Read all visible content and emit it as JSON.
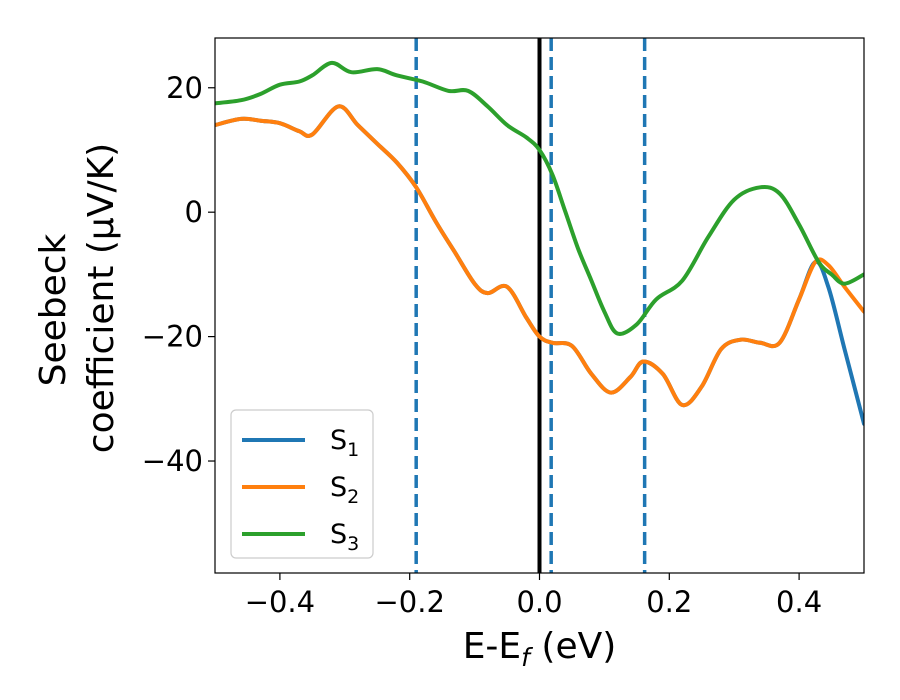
{
  "chart_data": {
    "type": "line",
    "xlabel": "E-E",
    "xlabel_sub": "f",
    "xlabel_unit": " (eV)",
    "ylabel_line1": "Seebeck",
    "ylabel_line2": "coefficient  (μV/K)",
    "xlim": [
      -0.5,
      0.5
    ],
    "ylim": [
      -58,
      28
    ],
    "xticks": [
      -0.4,
      -0.2,
      0.0,
      0.2,
      0.4
    ],
    "xtick_labels": [
      "−0.4",
      "−0.2",
      "0.0",
      "0.2",
      "0.4"
    ],
    "yticks": [
      20,
      0,
      -20,
      -40
    ],
    "ytick_labels": [
      "20",
      "0",
      "−20",
      "−40"
    ],
    "grid": false,
    "legend_position": "lower-left",
    "vertical_lines": [
      {
        "x": -0.19,
        "style": "dashed",
        "color": "#1f77b4"
      },
      {
        "x": 0.0,
        "style": "solid",
        "color": "#000000"
      },
      {
        "x": 0.018,
        "style": "dashed",
        "color": "#1f77b4"
      },
      {
        "x": 0.162,
        "style": "dashed",
        "color": "#1f77b4"
      }
    ],
    "series": [
      {
        "name": "S",
        "subscript": "1",
        "color": "#1f77b4",
        "x": [
          -0.5,
          -0.46,
          -0.43,
          -0.4,
          -0.37,
          -0.35,
          -0.31,
          -0.28,
          -0.25,
          -0.22,
          -0.19,
          -0.16,
          -0.13,
          -0.1,
          -0.08,
          -0.05,
          -0.02,
          0.0,
          0.02,
          0.05,
          0.08,
          0.11,
          0.14,
          0.16,
          0.19,
          0.22,
          0.25,
          0.28,
          0.31,
          0.34,
          0.37,
          0.4,
          0.425,
          0.445,
          0.47,
          0.5
        ],
        "y": [
          14,
          15,
          14.7,
          14.3,
          13,
          12.5,
          17,
          14,
          11,
          8,
          4,
          -1.5,
          -6.5,
          -11.5,
          -13,
          -12,
          -17,
          -20,
          -21,
          -21.5,
          -26,
          -29,
          -26.5,
          -24,
          -26,
          -31,
          -28,
          -22,
          -20.5,
          -21,
          -21,
          -14,
          -8,
          -12,
          -22,
          -34
        ]
      },
      {
        "name": "S",
        "subscript": "2",
        "color": "#ff7f0e",
        "x": [
          -0.5,
          -0.46,
          -0.43,
          -0.4,
          -0.37,
          -0.35,
          -0.31,
          -0.28,
          -0.25,
          -0.22,
          -0.19,
          -0.16,
          -0.13,
          -0.1,
          -0.08,
          -0.05,
          -0.02,
          0.0,
          0.02,
          0.05,
          0.08,
          0.11,
          0.14,
          0.16,
          0.19,
          0.22,
          0.25,
          0.28,
          0.31,
          0.34,
          0.37,
          0.4,
          0.425,
          0.445,
          0.47,
          0.5
        ],
        "y": [
          14,
          15,
          14.7,
          14.3,
          13,
          12.5,
          17,
          14,
          11,
          8,
          4,
          -1.5,
          -6.5,
          -11.5,
          -13,
          -12,
          -17,
          -20,
          -21,
          -21.5,
          -26,
          -29,
          -26.5,
          -24,
          -26,
          -31,
          -28,
          -22,
          -20.5,
          -21,
          -21,
          -14,
          -8,
          -8.5,
          -12,
          -16
        ]
      },
      {
        "name": "S",
        "subscript": "3",
        "color": "#2ca02c",
        "x": [
          -0.5,
          -0.46,
          -0.43,
          -0.4,
          -0.37,
          -0.35,
          -0.32,
          -0.29,
          -0.25,
          -0.22,
          -0.18,
          -0.14,
          -0.11,
          -0.08,
          -0.05,
          -0.02,
          0.0,
          0.02,
          0.04,
          0.06,
          0.08,
          0.1,
          0.12,
          0.15,
          0.18,
          0.22,
          0.26,
          0.3,
          0.34,
          0.37,
          0.4,
          0.43,
          0.45,
          0.47,
          0.5
        ],
        "y": [
          17.5,
          18,
          19,
          20.5,
          21,
          22,
          24,
          22.5,
          23,
          22,
          21,
          19.5,
          19.5,
          17,
          14,
          12,
          10,
          6,
          0,
          -6,
          -11,
          -16,
          -19.5,
          -18,
          -14,
          -11,
          -4,
          2,
          4,
          3,
          -2,
          -8,
          -10,
          -11.5,
          -10
        ]
      }
    ]
  }
}
